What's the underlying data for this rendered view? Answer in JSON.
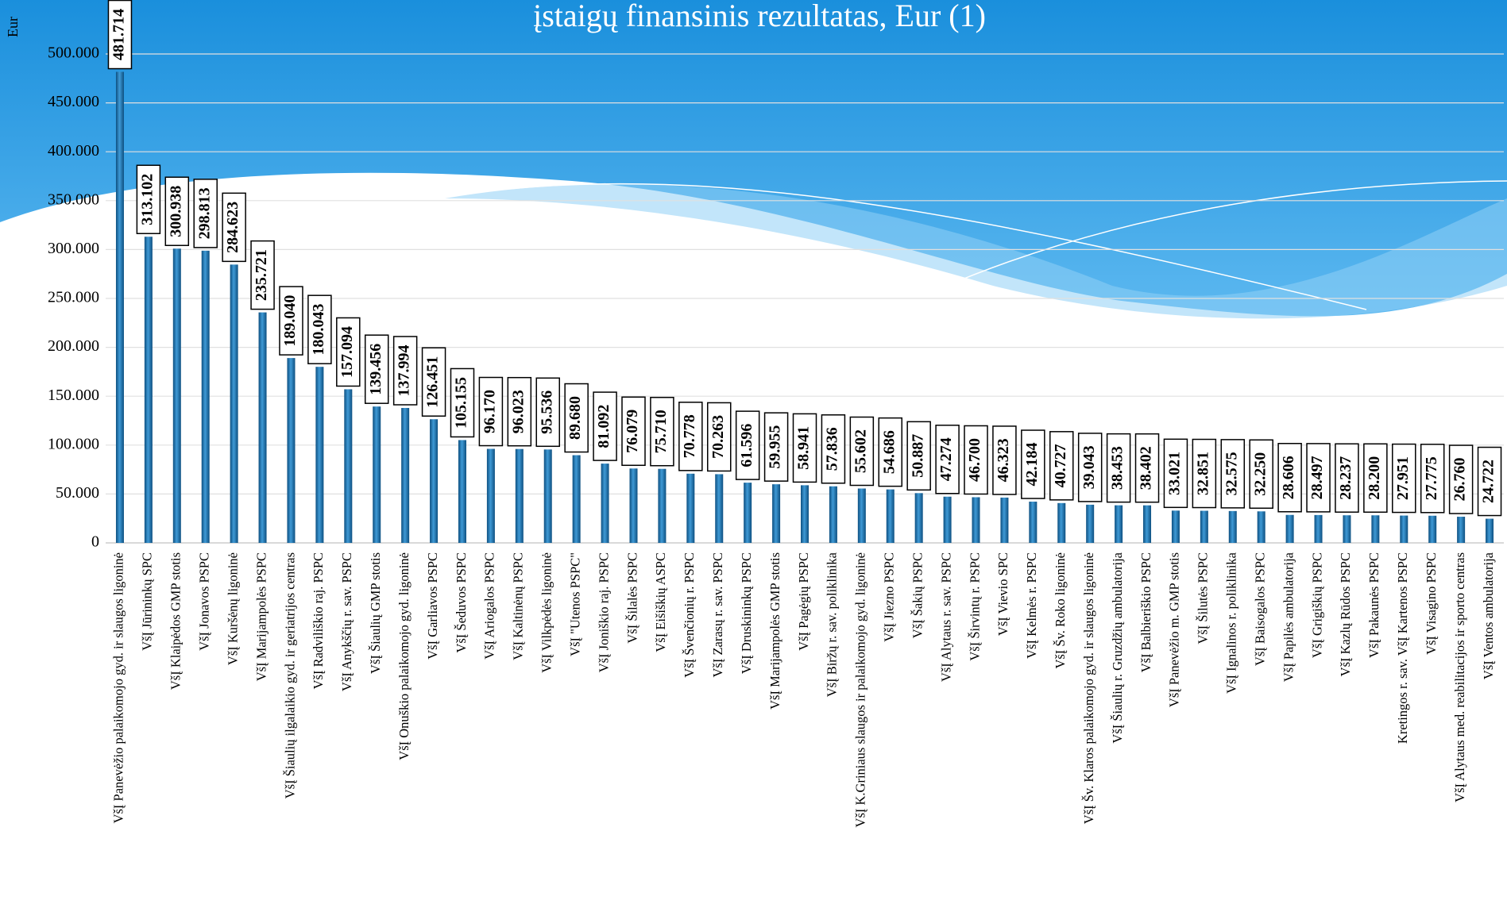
{
  "chart_data": {
    "type": "bar",
    "title": "įstaigų finansinis rezultatas, Eur (1)",
    "y_label": "Eur",
    "categories": [
      "VšĮ Panevėžio palaikomojo gyd. ir slaugos ligoninė",
      "VšĮ Jūrininkų SPC",
      "VšĮ Klaipėdos GMP stotis",
      "VšĮ Jonavos PSPC",
      "VšĮ Kuršėnų ligoninė",
      "VšĮ Marijampolės PSPC",
      "VšĮ Šiaulių ilgalaikio gyd. ir geriatrijos centras",
      "VšĮ Radviliškio raj. PSPC",
      "VšĮ Anykščių r. sav. PSPC",
      "VšĮ Šiaulių GMP stotis",
      "VšĮ Onuškio palaikomojo gyd. ligoninė",
      "VšĮ Garliavos PSPC",
      "VšĮ Šeduvos PSPC",
      "VšĮ Ariogalos PSPC",
      "VšĮ Kaltinėnų PSPC",
      "VšĮ Vilkpėdės ligoninė",
      "VšĮ \"Utenos PSPC\"",
      "VšĮ Joniškio raj. PSPC",
      "VšĮ Šilalės PSPC",
      "VšĮ Eišiškių ASPC",
      "VšĮ Švenčionių r. PSPC",
      "VšĮ Zarasų r. sav. PSPC",
      "VšĮ Druskininkų PSPC",
      "VšĮ Marijampolės GMP stotis",
      "VšĮ Pagėgių PSPC",
      "VšĮ Biržų r. sav. poliklinika",
      "VšĮ K.Griniaus slaugos ir palaikomojo gyd. ligoninė",
      "VšĮ Jiezno PSPC",
      "VšĮ Šakių PSPC",
      "VšĮ Alytaus r. sav. PSPC",
      "VšĮ Širvintų r. PSPC",
      "VšĮ Vievio SPC",
      "VšĮ Kelmės r. PSPC",
      "VšĮ Šv. Roko ligoninė",
      "VšĮ Šv. Klaros palaikomojo gyd. ir slaugos ligoninė",
      "VšĮ Šiaulių r. Gruzdžių ambulatorija",
      "VšĮ Balbieriškio PSPC",
      "VšĮ Panevėžio m. GMP stotis",
      "VšĮ Šilutės PSPC",
      "VšĮ Ignalinos r. poliklinika",
      "VšĮ Baisogalos PSPC",
      "VšĮ Papilės ambulatorija",
      "VšĮ Grigiškių PSPC",
      "VšĮ Kazlų Rūdos PSPC",
      "VšĮ Pakaunės PSPC",
      "Kretingos r. sav. VšĮ Kartenos PSPC",
      "VšĮ Visagino PSPC",
      "VšĮ Alytaus med. reabilitacijos ir sporto centras",
      "VšĮ Ventos ambulatorija"
    ],
    "values": [
      481714,
      313102,
      300938,
      298813,
      284623,
      235721,
      189040,
      180043,
      157094,
      139456,
      137994,
      126451,
      105155,
      96170,
      96023,
      95536,
      89680,
      81092,
      76079,
      75710,
      70778,
      70263,
      61596,
      59955,
      58941,
      57836,
      55602,
      54686,
      50887,
      47274,
      46700,
      46323,
      42184,
      40727,
      39043,
      38453,
      38402,
      33021,
      32851,
      32575,
      32250,
      28606,
      28497,
      28237,
      28200,
      27951,
      27775,
      26760,
      24722
    ],
    "value_labels": [
      "481.714",
      "313.102",
      "300.938",
      "298.813",
      "284.623",
      "235.721",
      "189.040",
      "180.043",
      "157.094",
      "139.456",
      "137.994",
      "126.451",
      "105.155",
      "96.170",
      "96.023",
      "95.536",
      "89.680",
      "81.092",
      "76.079",
      "75.710",
      "70.778",
      "70.263",
      "61.596",
      "59.955",
      "58.941",
      "57.836",
      "55.602",
      "54.686",
      "50.887",
      "47.274",
      "46.700",
      "46.323",
      "42.184",
      "40.727",
      "39.043",
      "38.453",
      "38.402",
      "33.021",
      "32.851",
      "32.575",
      "32.250",
      "28.606",
      "28.497",
      "28.237",
      "28.200",
      "27.951",
      "27.775",
      "26.760",
      "24.722"
    ],
    "color": "#1f6fa8",
    "ylim": [
      0,
      500000
    ],
    "yticks": [
      0,
      {
        "value": 50000,
        "label": "50.000"
      },
      {
        "value": 100000,
        "label": "100.000"
      },
      {
        "value": 150000,
        "label": "150.000"
      },
      {
        "value": 200000,
        "label": "200.000"
      },
      {
        "value": 250000,
        "label": "250.000"
      },
      {
        "value": 300000,
        "label": "300.000"
      },
      {
        "value": 350000,
        "label": "350.000"
      },
      {
        "value": 400000,
        "label": "400.000"
      },
      {
        "value": 450000,
        "label": "450.000"
      },
      {
        "value": 500000,
        "label": "500.000"
      }
    ],
    "grid": true
  }
}
